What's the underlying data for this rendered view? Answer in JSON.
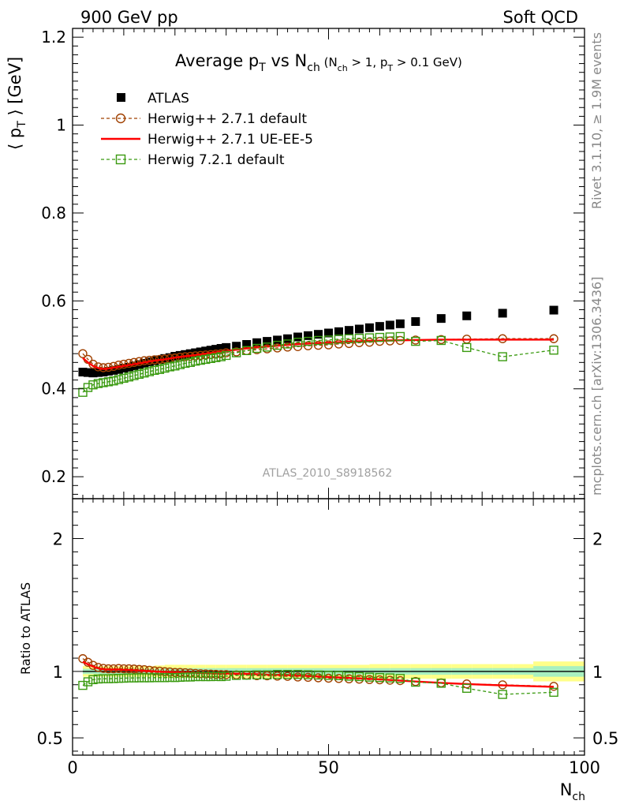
{
  "header": {
    "left": "900 GeV pp",
    "right": "Soft QCD"
  },
  "side_text": {
    "rivet": "Rivet 3.1.10, ≥ 1.9M events",
    "mcplots": "mcplots.cern.ch [arXiv:1306.3436]"
  },
  "chart_data": [
    {
      "type": "scatter",
      "title_parts": {
        "main": "Average p",
        "main_sub": "T",
        "vs": " vs N",
        "vs_sub": "ch",
        "cut_open": " (N",
        "cut_sub1": "ch",
        "cut_mid": " > 1, p",
        "cut_sub2": "T",
        "cut_close": " > 0.1 GeV)"
      },
      "ylabel_parts": {
        "open": "⟨ p",
        "sub": "T",
        "close": " ⟩  [GeV]"
      },
      "analysis_label": "ATLAS_2010_S8918562",
      "xlim": [
        0,
        100
      ],
      "ylim": [
        0.15,
        1.22
      ],
      "y_ticks": [
        0.2,
        0.4,
        0.6,
        0.8,
        1,
        1.2
      ],
      "y_tick_labels": [
        "0.2",
        "0.4",
        "0.6",
        "0.8",
        "1",
        "1.2"
      ],
      "legend": [
        "ATLAS",
        "Herwig++ 2.7.1 default",
        "Herwig++ 2.7.1 UE-EE-5",
        "Herwig 7.2.1 default"
      ],
      "series": [
        {
          "name": "ATLAS",
          "color": "#000000",
          "marker": "filled-square",
          "x": [
            2,
            3,
            4,
            5,
            6,
            7,
            8,
            9,
            10,
            11,
            12,
            13,
            14,
            15,
            16,
            17,
            18,
            19,
            20,
            21,
            22,
            23,
            24,
            25,
            26,
            27,
            28,
            29,
            30,
            32,
            34,
            36,
            38,
            40,
            42,
            44,
            46,
            48,
            50,
            52,
            54,
            56,
            58,
            60,
            62,
            64,
            67,
            72,
            77,
            84,
            94
          ],
          "y": [
            0.438,
            0.437,
            0.436,
            0.437,
            0.438,
            0.44,
            0.442,
            0.444,
            0.447,
            0.449,
            0.452,
            0.455,
            0.458,
            0.461,
            0.464,
            0.466,
            0.469,
            0.471,
            0.474,
            0.476,
            0.478,
            0.48,
            0.482,
            0.484,
            0.486,
            0.488,
            0.49,
            0.492,
            0.494,
            0.497,
            0.501,
            0.505,
            0.508,
            0.511,
            0.514,
            0.518,
            0.521,
            0.524,
            0.527,
            0.53,
            0.533,
            0.536,
            0.539,
            0.542,
            0.545,
            0.548,
            0.553,
            0.56,
            0.566,
            0.572,
            0.579
          ]
        },
        {
          "name": "Herwig++ 2.7.1 default",
          "color": "#a04000",
          "marker": "open-circle",
          "line": "dashed",
          "x": [
            2,
            3,
            4,
            5,
            6,
            7,
            8,
            9,
            10,
            11,
            12,
            13,
            14,
            15,
            16,
            17,
            18,
            19,
            20,
            21,
            22,
            23,
            24,
            25,
            26,
            27,
            28,
            29,
            30,
            32,
            34,
            36,
            38,
            40,
            42,
            44,
            46,
            48,
            50,
            52,
            54,
            56,
            58,
            60,
            62,
            64,
            67,
            72,
            77,
            84,
            94
          ],
          "y": [
            0.48,
            0.467,
            0.456,
            0.45,
            0.448,
            0.449,
            0.451,
            0.454,
            0.456,
            0.458,
            0.46,
            0.462,
            0.464,
            0.465,
            0.466,
            0.467,
            0.468,
            0.469,
            0.47,
            0.472,
            0.473,
            0.474,
            0.475,
            0.476,
            0.477,
            0.478,
            0.479,
            0.48,
            0.482,
            0.484,
            0.487,
            0.489,
            0.491,
            0.493,
            0.495,
            0.496,
            0.498,
            0.499,
            0.5,
            0.502,
            0.503,
            0.505,
            0.506,
            0.508,
            0.509,
            0.51,
            0.511,
            0.512,
            0.513,
            0.514,
            0.514
          ]
        },
        {
          "name": "Herwig++ 2.7.1 UE-EE-5",
          "color": "#ff0000",
          "marker": "none",
          "line": "solid",
          "x": [
            2,
            3,
            4,
            5,
            6,
            7,
            8,
            9,
            10,
            12,
            14,
            16,
            18,
            20,
            22,
            24,
            26,
            28,
            30,
            34,
            38,
            42,
            46,
            50,
            54,
            58,
            62,
            67,
            72,
            77,
            84,
            94
          ],
          "y": [
            0.47,
            0.46,
            0.452,
            0.447,
            0.445,
            0.446,
            0.448,
            0.45,
            0.452,
            0.456,
            0.46,
            0.464,
            0.467,
            0.471,
            0.474,
            0.477,
            0.48,
            0.483,
            0.486,
            0.492,
            0.496,
            0.5,
            0.503,
            0.505,
            0.507,
            0.509,
            0.51,
            0.511,
            0.512,
            0.512,
            0.512,
            0.512
          ]
        },
        {
          "name": "Herwig 7.2.1 default",
          "color": "#3a9a10",
          "marker": "open-square",
          "line": "dashed",
          "x": [
            2,
            3,
            4,
            5,
            6,
            7,
            8,
            9,
            10,
            11,
            12,
            13,
            14,
            15,
            16,
            17,
            18,
            19,
            20,
            21,
            22,
            23,
            24,
            25,
            26,
            27,
            28,
            29,
            30,
            32,
            34,
            36,
            38,
            40,
            42,
            44,
            46,
            48,
            50,
            52,
            54,
            56,
            58,
            60,
            62,
            64,
            67,
            72,
            77,
            84,
            94
          ],
          "y": [
            0.392,
            0.403,
            0.409,
            0.412,
            0.414,
            0.416,
            0.418,
            0.421,
            0.424,
            0.427,
            0.43,
            0.433,
            0.436,
            0.439,
            0.442,
            0.444,
            0.447,
            0.45,
            0.452,
            0.455,
            0.458,
            0.46,
            0.463,
            0.465,
            0.467,
            0.469,
            0.471,
            0.473,
            0.476,
            0.482,
            0.487,
            0.492,
            0.495,
            0.499,
            0.502,
            0.506,
            0.508,
            0.51,
            0.511,
            0.513,
            0.514,
            0.515,
            0.516,
            0.517,
            0.518,
            0.519,
            0.508,
            0.51,
            0.494,
            0.473,
            0.488
          ]
        }
      ]
    },
    {
      "type": "scatter",
      "ylabel": "Ratio to ATLAS",
      "xlabel_parts": {
        "main": "N",
        "sub": "ch"
      },
      "xlim": [
        0,
        100
      ],
      "ylim": [
        0.37,
        2.3
      ],
      "y_ticks": [
        0.5,
        1,
        2
      ],
      "y_tick_labels": [
        "0.5",
        "1",
        "2"
      ],
      "x_ticks": [
        0,
        50,
        100
      ],
      "x_tick_labels": [
        "0",
        "50",
        "100"
      ],
      "band": {
        "x_edges": [
          2,
          4,
          6,
          8,
          10,
          12,
          14,
          16,
          18,
          20,
          22,
          24,
          26,
          28,
          30,
          34,
          38,
          42,
          46,
          50,
          54,
          58,
          62,
          66,
          70,
          74,
          78,
          82,
          86,
          90,
          100
        ],
        "inner": [
          0.02,
          0.02,
          0.02,
          0.02,
          0.02,
          0.02,
          0.02,
          0.02,
          0.025,
          0.025,
          0.025,
          0.025,
          0.025,
          0.025,
          0.025,
          0.025,
          0.025,
          0.025,
          0.025,
          0.025,
          0.025,
          0.025,
          0.025,
          0.025,
          0.025,
          0.025,
          0.025,
          0.025,
          0.025,
          0.04
        ],
        "outer": [
          0.04,
          0.04,
          0.04,
          0.04,
          0.04,
          0.04,
          0.04,
          0.045,
          0.05,
          0.05,
          0.05,
          0.05,
          0.05,
          0.05,
          0.05,
          0.05,
          0.05,
          0.05,
          0.05,
          0.05,
          0.05,
          0.055,
          0.055,
          0.055,
          0.055,
          0.055,
          0.055,
          0.055,
          0.055,
          0.075
        ],
        "inner_color": "#a8f0c0",
        "outer_color": "#ffff88"
      },
      "series": [
        {
          "name": "Herwig++ 2.7.1 default",
          "color": "#a04000",
          "marker": "open-circle",
          "line": "dashed",
          "x": [
            2,
            3,
            4,
            5,
            6,
            7,
            8,
            9,
            10,
            11,
            12,
            13,
            14,
            15,
            16,
            17,
            18,
            19,
            20,
            21,
            22,
            23,
            24,
            25,
            26,
            27,
            28,
            29,
            30,
            32,
            34,
            36,
            38,
            40,
            42,
            44,
            46,
            48,
            50,
            52,
            54,
            56,
            58,
            60,
            62,
            64,
            67,
            72,
            77,
            84,
            94
          ],
          "y": [
            1.096,
            1.069,
            1.046,
            1.03,
            1.023,
            1.02,
            1.02,
            1.022,
            1.02,
            1.02,
            1.018,
            1.015,
            1.013,
            1.009,
            1.004,
            1.002,
            0.998,
            0.996,
            0.992,
            0.992,
            0.99,
            0.988,
            0.985,
            0.983,
            0.981,
            0.98,
            0.978,
            0.976,
            0.976,
            0.974,
            0.972,
            0.968,
            0.967,
            0.965,
            0.963,
            0.958,
            0.956,
            0.952,
            0.949,
            0.947,
            0.944,
            0.942,
            0.939,
            0.937,
            0.934,
            0.931,
            0.924,
            0.914,
            0.906,
            0.899,
            0.888
          ]
        },
        {
          "name": "Herwig++ 2.7.1 UE-EE-5",
          "color": "#ff0000",
          "marker": "none",
          "line": "solid",
          "x": [
            2,
            3,
            4,
            5,
            6,
            7,
            8,
            9,
            10,
            12,
            14,
            16,
            18,
            20,
            22,
            24,
            26,
            28,
            30,
            34,
            38,
            42,
            46,
            50,
            54,
            58,
            62,
            67,
            72,
            77,
            84,
            94
          ],
          "y": [
            1.073,
            1.053,
            1.037,
            1.023,
            1.016,
            1.014,
            1.014,
            1.014,
            1.012,
            1.009,
            1.004,
            1.0,
            0.996,
            0.994,
            0.992,
            0.99,
            0.988,
            0.986,
            0.984,
            0.982,
            0.976,
            0.973,
            0.966,
            0.958,
            0.951,
            0.944,
            0.936,
            0.924,
            0.914,
            0.905,
            0.895,
            0.884
          ]
        },
        {
          "name": "Herwig 7.2.1 default",
          "color": "#3a9a10",
          "marker": "open-square",
          "line": "dashed",
          "x": [
            2,
            3,
            4,
            5,
            6,
            7,
            8,
            9,
            10,
            11,
            12,
            13,
            14,
            15,
            16,
            17,
            18,
            19,
            20,
            21,
            22,
            23,
            24,
            25,
            26,
            27,
            28,
            29,
            30,
            32,
            34,
            36,
            38,
            40,
            42,
            44,
            46,
            48,
            50,
            52,
            54,
            56,
            58,
            60,
            62,
            64,
            67,
            72,
            77,
            84,
            94
          ],
          "y": [
            0.895,
            0.922,
            0.938,
            0.943,
            0.945,
            0.945,
            0.946,
            0.948,
            0.949,
            0.951,
            0.951,
            0.952,
            0.952,
            0.952,
            0.953,
            0.953,
            0.953,
            0.955,
            0.954,
            0.956,
            0.958,
            0.958,
            0.961,
            0.961,
            0.961,
            0.961,
            0.962,
            0.961,
            0.964,
            0.97,
            0.972,
            0.974,
            0.974,
            0.977,
            0.977,
            0.977,
            0.975,
            0.973,
            0.97,
            0.968,
            0.964,
            0.961,
            0.957,
            0.954,
            0.951,
            0.947,
            0.919,
            0.911,
            0.873,
            0.827,
            0.843
          ]
        }
      ]
    }
  ]
}
